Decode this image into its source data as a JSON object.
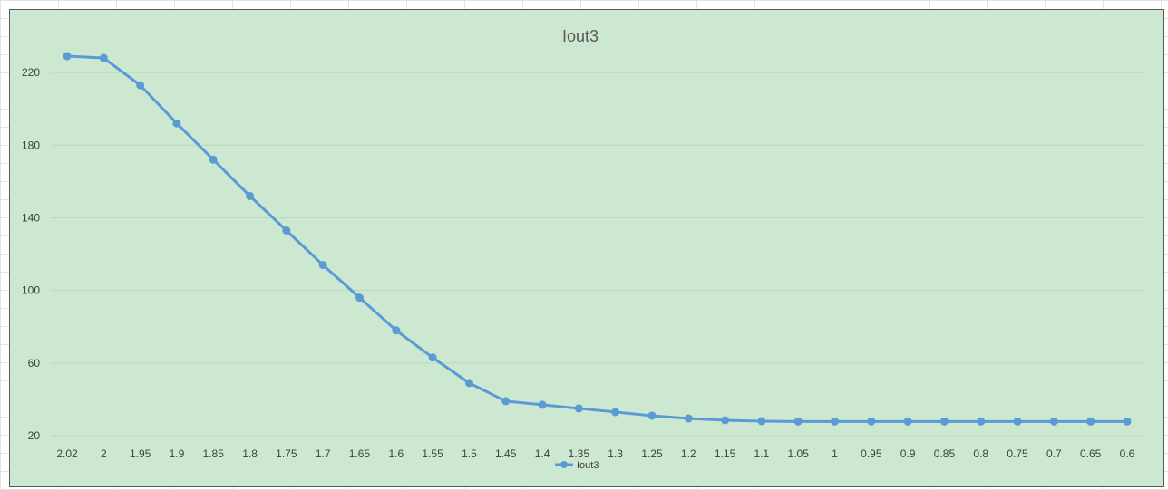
{
  "chart_data": {
    "type": "line",
    "title": "Iout3",
    "xlabel": "",
    "ylabel": "",
    "categories": [
      "2.02",
      "2",
      "1.95",
      "1.9",
      "1.85",
      "1.8",
      "1.75",
      "1.7",
      "1.65",
      "1.6",
      "1.55",
      "1.5",
      "1.45",
      "1.4",
      "1.35",
      "1.3",
      "1.25",
      "1.2",
      "1.15",
      "1.1",
      "1.05",
      "1",
      "0.95",
      "0.9",
      "0.85",
      "0.8",
      "0.75",
      "0.7",
      "0.65",
      "0.6"
    ],
    "series": [
      {
        "name": "Iout3",
        "values": [
          229,
          228,
          213,
          192,
          172,
          152,
          133,
          114,
          96,
          78,
          63,
          49,
          39,
          37,
          35,
          33,
          31,
          29.5,
          28.5,
          28,
          27.8,
          27.8,
          27.8,
          27.8,
          27.8,
          27.8,
          27.8,
          27.8,
          27.8,
          27.8
        ],
        "color": "#5b9bd5"
      }
    ],
    "ylim": [
      20,
      240
    ],
    "yticks": [
      20,
      60,
      100,
      140,
      180,
      220
    ],
    "grid": true,
    "legend": "bottom",
    "background": "#cde8d0"
  }
}
